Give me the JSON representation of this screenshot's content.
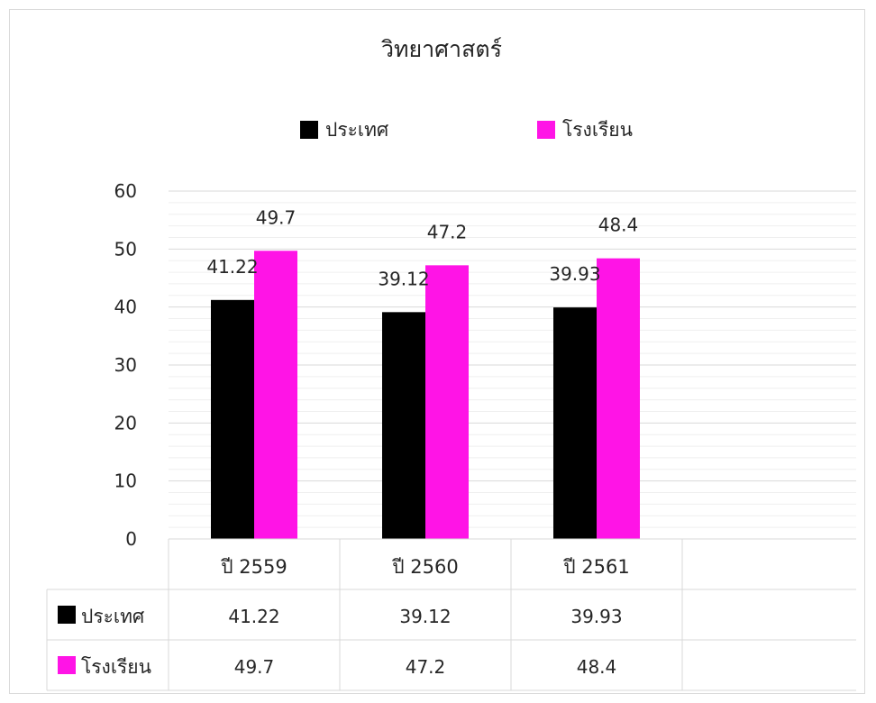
{
  "chart_data": {
    "type": "bar",
    "title": "วิทยาศาสตร์",
    "categories": [
      "ปี 2559",
      "ปี 2560",
      "ปี 2561"
    ],
    "series": [
      {
        "name": "ประเทศ",
        "values": [
          41.22,
          39.12,
          39.93
        ],
        "color": "#000000"
      },
      {
        "name": "โรงเรียน",
        "values": [
          49.7,
          47.2,
          48.4
        ],
        "color": "#ff14e6"
      }
    ],
    "ylim": [
      0,
      60
    ],
    "yticks": [
      0,
      10,
      20,
      30,
      40,
      50,
      60
    ],
    "grid": true,
    "legend": "top",
    "data_table": true
  }
}
